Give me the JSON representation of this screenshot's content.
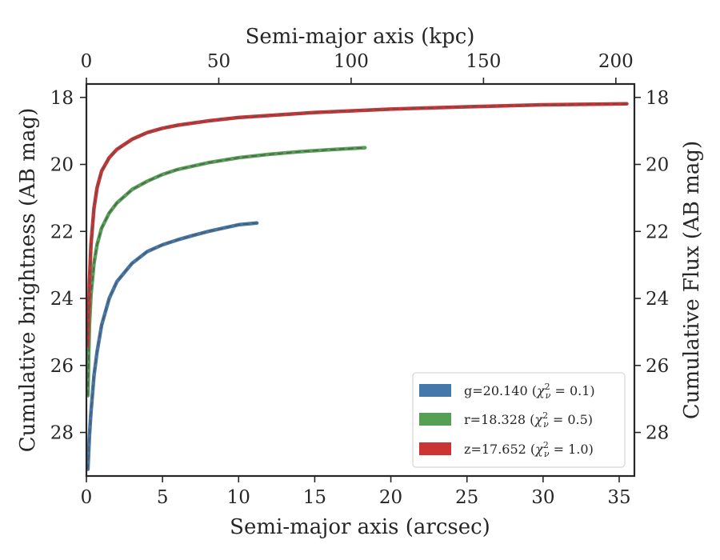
{
  "chart_data": {
    "type": "line",
    "xlabel": "Semi-major axis (arcsec)",
    "xlabel_top": "Semi-major axis (kpc)",
    "ylabel": "Cumulative brightness (AB mag)",
    "ylabel_right": "Cumulative Flux (AB mag)",
    "xlim": [
      0,
      36
    ],
    "ylim": [
      29.3,
      17.6
    ],
    "top_xlim": [
      0,
      207
    ],
    "y_inverted": true,
    "grid": false,
    "legend_position": "lower right",
    "x_ticks": [
      0,
      5,
      10,
      15,
      20,
      25,
      30,
      35
    ],
    "x_tick_labels": [
      "0",
      "5",
      "10",
      "15",
      "20",
      "25",
      "30",
      "35"
    ],
    "top_x_ticks": [
      0,
      50,
      100,
      150,
      200
    ],
    "top_x_tick_labels": [
      "0",
      "50",
      "100",
      "150",
      "200"
    ],
    "y_ticks": [
      18,
      20,
      22,
      24,
      26,
      28
    ],
    "y_tick_labels": [
      "18",
      "20",
      "22",
      "24",
      "26",
      "28"
    ],
    "model_line_color": "#555555",
    "series": [
      {
        "name": "g=20.140 (χ²ν = 0.1)",
        "band": "g",
        "mag": "20.140",
        "chi2": "0.1",
        "color": "#4477aa",
        "x": [
          0.1,
          0.2,
          0.3,
          0.5,
          0.7,
          1.0,
          1.5,
          2.0,
          3.0,
          4.0,
          5.0,
          6.0,
          7.0,
          8.0,
          9.0,
          10.0,
          11.2
        ],
        "y": [
          29.1,
          28.1,
          27.4,
          26.3,
          25.6,
          24.8,
          24.0,
          23.5,
          22.95,
          22.6,
          22.4,
          22.25,
          22.12,
          22.0,
          21.9,
          21.8,
          21.75
        ]
      },
      {
        "name": "r=18.328 (χ²ν = 0.5)",
        "band": "r",
        "mag": "18.328",
        "chi2": "0.5",
        "color": "#55a055",
        "x": [
          0.1,
          0.15,
          0.2,
          0.3,
          0.5,
          0.7,
          1.0,
          1.5,
          2.0,
          3.0,
          4.0,
          5.0,
          6.0,
          8.0,
          10.0,
          12.0,
          14.0,
          16.0,
          18.3
        ],
        "y": [
          26.9,
          25.7,
          24.8,
          23.9,
          22.95,
          22.4,
          21.9,
          21.45,
          21.15,
          20.75,
          20.5,
          20.3,
          20.15,
          19.95,
          19.8,
          19.7,
          19.62,
          19.56,
          19.5
        ]
      },
      {
        "name": "z=17.652 (χ²ν = 1.0)",
        "band": "z",
        "mag": "17.652",
        "chi2": "1.0",
        "color": "#cc3333",
        "x": [
          0.1,
          0.15,
          0.2,
          0.3,
          0.5,
          0.7,
          1.0,
          1.5,
          2.0,
          3.0,
          4.0,
          5.0,
          6.0,
          8.0,
          10.0,
          15.0,
          20.0,
          25.0,
          30.0,
          35.5
        ],
        "y": [
          25.4,
          24.4,
          23.5,
          22.4,
          21.3,
          20.7,
          20.2,
          19.8,
          19.55,
          19.25,
          19.05,
          18.92,
          18.83,
          18.7,
          18.6,
          18.45,
          18.35,
          18.28,
          18.22,
          18.19
        ]
      }
    ]
  }
}
